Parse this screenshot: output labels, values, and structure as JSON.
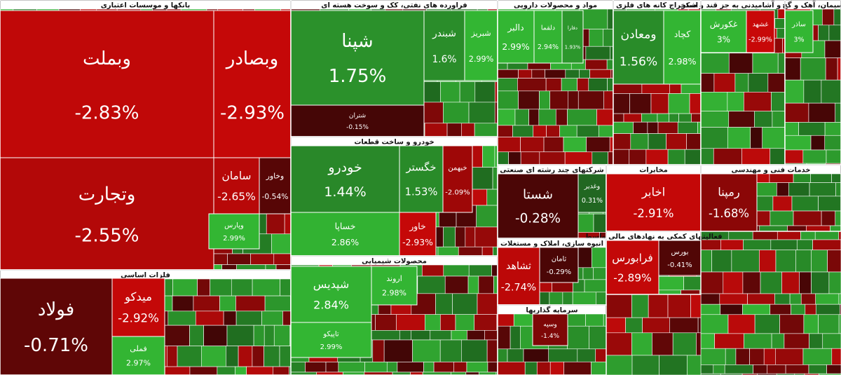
{
  "chart_data": {
    "type": "treemap",
    "sectors": [
      {
        "title": "بانکها و موسسات اعتباری",
        "tiles": [
          {
            "name": "وبملت",
            "value": -2.83,
            "value_label": "-2.83%"
          },
          {
            "name": "وتجارت",
            "value": -2.55,
            "value_label": "-2.55%"
          },
          {
            "name": "وبصادر",
            "value": -2.93,
            "value_label": "-2.93%"
          },
          {
            "name": "سامان",
            "value": -2.65,
            "value_label": "-2.65%"
          },
          {
            "name": "وپارس",
            "value": 2.99,
            "value_label": "2.99%"
          },
          {
            "name": "وخاور",
            "value": -0.54,
            "value_label": "-0.54%"
          }
        ]
      },
      {
        "title": "فلزات اساسی",
        "tiles": [
          {
            "name": "فولاد",
            "value": -0.71,
            "value_label": "-0.71%"
          },
          {
            "name": "میدکو",
            "value": -2.92,
            "value_label": "-2.92%"
          },
          {
            "name": "فملی",
            "value": 2.97,
            "value_label": "2.97%"
          }
        ]
      },
      {
        "title": "فراورده های نفتی، کک و سوخت هسته ای",
        "tiles": [
          {
            "name": "شپنا",
            "value": 1.75,
            "value_label": "1.75%"
          },
          {
            "name": "شبندر",
            "value": 1.6,
            "value_label": "1.6%"
          },
          {
            "name": "شبریز",
            "value": 2.99,
            "value_label": "2.99%"
          },
          {
            "name": "شتران",
            "value": -0.15,
            "value_label": "-0.15%"
          }
        ]
      },
      {
        "title": "خودرو و ساخت قطعات",
        "tiles": [
          {
            "name": "خودرو",
            "value": 1.44,
            "value_label": "1.44%"
          },
          {
            "name": "خگستر",
            "value": 1.53,
            "value_label": "1.53%"
          },
          {
            "name": "خساپا",
            "value": 2.86,
            "value_label": "2.86%"
          },
          {
            "name": "خاور",
            "value": -2.93,
            "value_label": "-2.93%"
          },
          {
            "name": "خبهمن",
            "value": -2.09,
            "value_label": "-2.09%"
          }
        ]
      },
      {
        "title": "محصولات شیمیایی",
        "tiles": [
          {
            "name": "شپدیس",
            "value": 2.84,
            "value_label": "2.84%"
          },
          {
            "name": "تاپیکو",
            "value": 2.99,
            "value_label": "2.99%"
          },
          {
            "name": "اروند",
            "value": 2.98,
            "value_label": "2.98%"
          }
        ]
      },
      {
        "title": "مواد و محصولات دارویی",
        "tiles": [
          {
            "name": "دالبر",
            "value": 2.99,
            "value_label": "2.99%"
          },
          {
            "name": "دلقما",
            "value": 2.94,
            "value_label": "2.94%"
          },
          {
            "name": "دفارا",
            "value": 1.93,
            "value_label": "1.93%"
          }
        ]
      },
      {
        "title": "استخراج کانه های فلزی",
        "tiles": [
          {
            "name": "ومعادن",
            "value": 1.56,
            "value_label": "1.56%"
          },
          {
            "name": "کچاد",
            "value": 2.98,
            "value_label": "2.98%"
          }
        ]
      },
      {
        "title": "غذایی و آشامیدنی به جز قند و شکر",
        "tiles": [
          {
            "name": "غکورش",
            "value": 3,
            "value_label": "3%"
          },
          {
            "name": "غشهد",
            "value": -2.99,
            "value_label": "-2.99%"
          }
        ]
      },
      {
        "title": "سیمان، آهک و گچ",
        "tiles": [
          {
            "name": "ساذر",
            "value": 3,
            "value_label": "3%"
          }
        ]
      },
      {
        "title": "شرکتهای چند رشته ای صنعتی",
        "tiles": [
          {
            "name": "شستا",
            "value": -0.28,
            "value_label": "-0.28%"
          },
          {
            "name": "وغدیر",
            "value": 0.31,
            "value_label": "0.31%"
          }
        ]
      },
      {
        "title": "مخابرات",
        "tiles": [
          {
            "name": "اخابر",
            "value": -2.91,
            "value_label": "-2.91%"
          }
        ]
      },
      {
        "title": "خدمات فنی و مهندسی",
        "tiles": [
          {
            "name": "رمپنا",
            "value": -1.68,
            "value_label": "-1.68%"
          }
        ]
      },
      {
        "title": "فعالیتهای کمکی به نهادهای مالی واسط",
        "tiles": [
          {
            "name": "فرابورس",
            "value": -2.89,
            "value_label": "-2.89%"
          },
          {
            "name": "بورس",
            "value": -0.41,
            "value_label": "-0.41%"
          }
        ]
      },
      {
        "title": "انبوه سازی، املاک و مستغلات",
        "tiles": [
          {
            "name": "ثشاهد",
            "value": -2.74,
            "value_label": "-2.74%"
          },
          {
            "name": "ثامان",
            "value": -0.29,
            "value_label": "-0.29%"
          }
        ]
      },
      {
        "title": "سرمایه گذاریها",
        "tiles": [
          {
            "name": "وسپه",
            "value": -1.4,
            "value_label": "-1.4%"
          }
        ]
      }
    ]
  }
}
